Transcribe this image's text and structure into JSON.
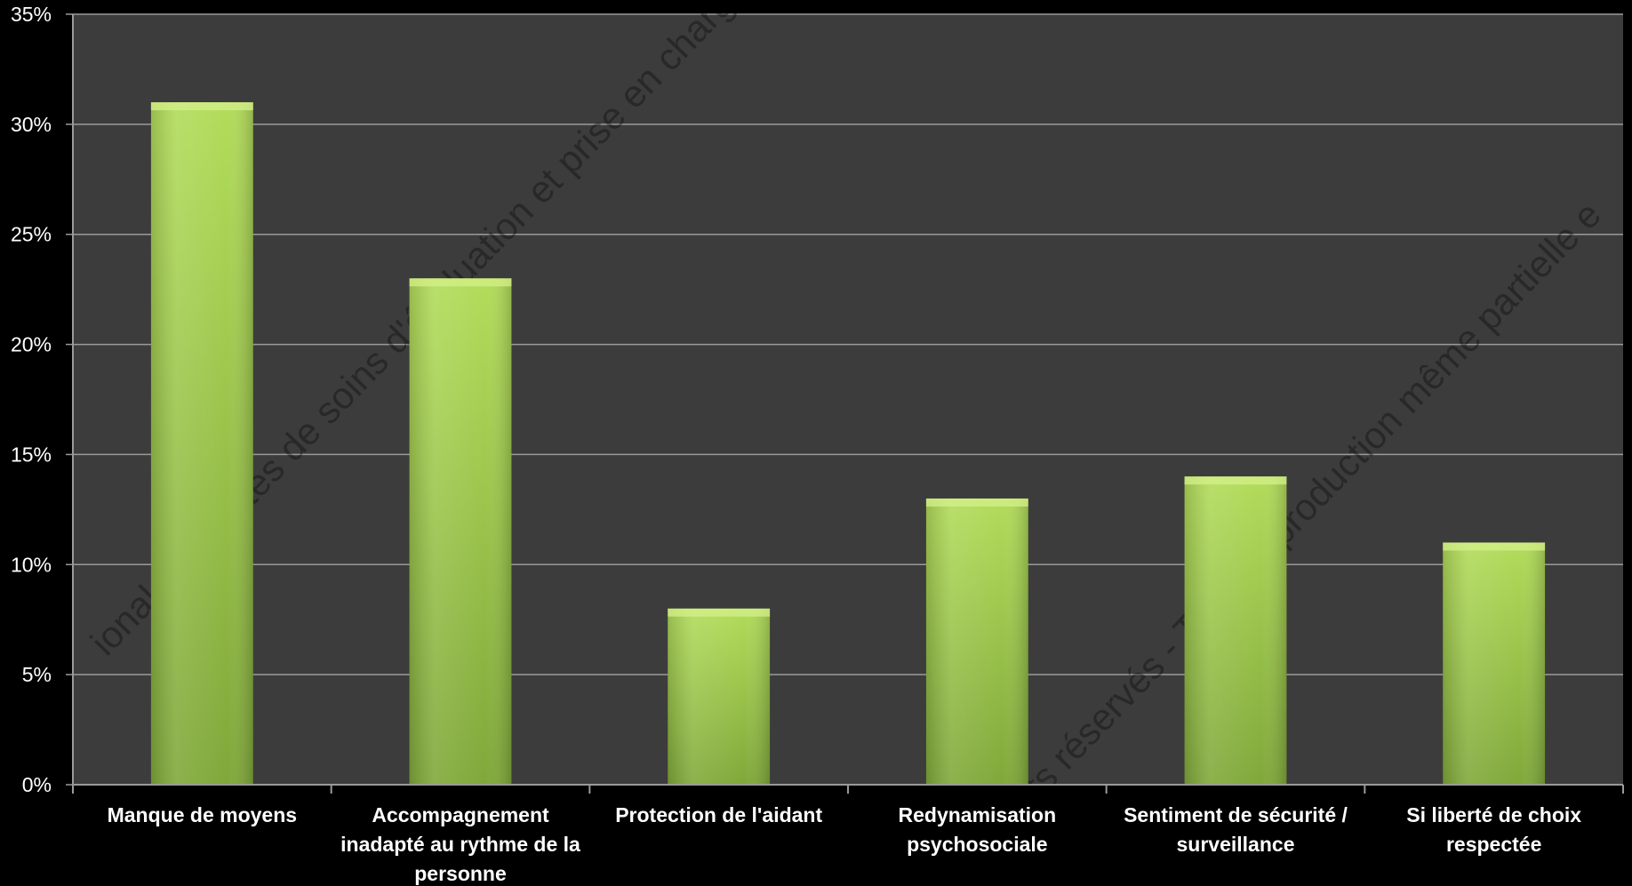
{
  "chart_data": {
    "type": "bar",
    "title": "",
    "xlabel": "",
    "ylabel": "",
    "categories": [
      [
        "Manque de moyens"
      ],
      [
        "Accompagnement",
        "inadapté au rythme de la",
        "personne"
      ],
      [
        "Protection de l'aidant"
      ],
      [
        "Redynamisation",
        "psychosociale"
      ],
      [
        "Sentiment de sécurité /",
        "surveillance"
      ],
      [
        "Si liberté de choix",
        "respectée"
      ]
    ],
    "values": [
      31,
      23,
      8,
      13,
      14,
      11
    ],
    "unit": "%",
    "ylim": [
      0,
      35
    ],
    "yticks": [
      0,
      5,
      10,
      15,
      20,
      25,
      30,
      35
    ],
    "ytick_labels": [
      "0%",
      "5%",
      "10%",
      "15%",
      "20%",
      "25%",
      "30%",
      "35%"
    ],
    "grid": true,
    "legend": "none",
    "colors": {
      "page_background": "#000000",
      "plot_background": "#3c3c3c",
      "gridline": "#9a9a9a",
      "bar_light": "#b2dc5a",
      "bar_dark": "#7fa83a",
      "text": "#ffffff"
    }
  },
  "watermarks": [
    "ional des unités de soins d'évaluation et prise en charg",
    "ts réservés - Toute reproduction même partielle e"
  ]
}
